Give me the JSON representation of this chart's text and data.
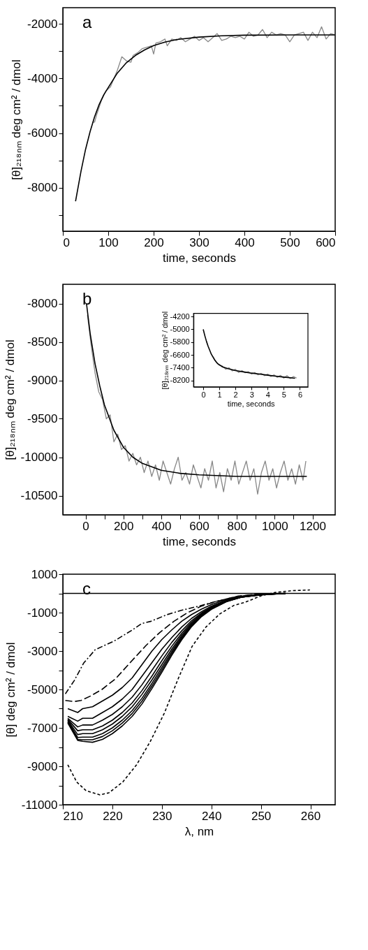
{
  "chart_data": [
    {
      "type": "line",
      "xlabel": "time, seconds",
      "ylabel": "[θ]₂₁₈ₙₘ deg cm² / dmol",
      "annotations": [
        "a"
      ],
      "xlim": [
        0,
        600
      ],
      "ylim": [
        -9600,
        -1400
      ],
      "xticks": [
        0,
        100,
        200,
        300,
        400,
        500,
        600
      ],
      "yticks": [
        -2000,
        {
          "value": -3000,
          "label": null
        },
        -4000,
        {
          "value": -5000,
          "label": null
        },
        -6000,
        {
          "value": -7000,
          "label": null
        },
        -8000,
        {
          "value": -9000,
          "label": null
        }
      ],
      "grid": false,
      "series": [
        {
          "color": "#888888",
          "line_style": "solid",
          "x": [
            65,
            70,
            75,
            85,
            95,
            105,
            110,
            120,
            130,
            140,
            150,
            155,
            165,
            175,
            185,
            195,
            200,
            205,
            215,
            225,
            230,
            240,
            250,
            260,
            270,
            280,
            290,
            300,
            310,
            320,
            330,
            340,
            350,
            360,
            370,
            380,
            390,
            400,
            410,
            420,
            430,
            440,
            450,
            460,
            470,
            480,
            490,
            500,
            510,
            520,
            530,
            540,
            550,
            560,
            570,
            580,
            590,
            600
          ],
          "values": [
            -5600,
            -5600,
            -5300,
            -4800,
            -4450,
            -4300,
            -4100,
            -3700,
            -3200,
            -3350,
            -3400,
            -3150,
            -3050,
            -2900,
            -2850,
            -2800,
            -3100,
            -2700,
            -2650,
            -2550,
            -2800,
            -2550,
            -2600,
            -2500,
            -2650,
            -2550,
            -2450,
            -2600,
            -2500,
            -2650,
            -2500,
            -2350,
            -2600,
            -2550,
            -2450,
            -2500,
            -2450,
            -2550,
            -2300,
            -2450,
            -2400,
            -2200,
            -2500,
            -2300,
            -2400,
            -2350,
            -2400,
            -2650,
            -2400,
            -2350,
            -2300,
            -2600,
            -2300,
            -2500,
            -2100,
            -2550,
            -2350,
            -2400
          ]
        },
        {
          "color": "#000000",
          "line_style": "solid",
          "x": [
            28,
            40,
            50,
            60,
            70,
            80,
            90,
            100,
            120,
            140,
            160,
            180,
            200,
            225,
            250,
            300,
            350,
            400,
            500,
            600
          ],
          "values": [
            -8500,
            -7400,
            -6600,
            -5950,
            -5400,
            -4950,
            -4600,
            -4330,
            -3800,
            -3420,
            -3150,
            -2950,
            -2790,
            -2660,
            -2570,
            -2480,
            -2430,
            -2410,
            -2400,
            -2400
          ]
        }
      ]
    },
    {
      "type": "line",
      "xlabel": "time, seconds",
      "ylabel": "[θ]₂₁₈ₙₘ deg cm² / dmol",
      "annotations": [
        "b"
      ],
      "xlim": [
        -120,
        1320
      ],
      "ylim": [
        -10750,
        -7750
      ],
      "xticks": [
        0,
        {
          "value": 100,
          "label": null
        },
        200,
        {
          "value": 300,
          "label": null
        },
        400,
        {
          "value": 500,
          "label": null
        },
        600,
        {
          "value": 700,
          "label": null
        },
        800,
        {
          "value": 900,
          "label": null
        },
        1000,
        {
          "value": 1100,
          "label": null
        },
        1200
      ],
      "yticks": [
        -8000,
        -8500,
        -9000,
        -9500,
        -10000,
        -10500
      ],
      "grid": false,
      "series": [
        {
          "color": "#888888",
          "line_style": "solid",
          "x": [
            10,
            30,
            50,
            70,
            90,
            110,
            130,
            150,
            170,
            190,
            210,
            230,
            250,
            270,
            290,
            310,
            330,
            350,
            370,
            390,
            410,
            430,
            450,
            470,
            490,
            510,
            530,
            550,
            570,
            590,
            610,
            630,
            650,
            670,
            690,
            710,
            730,
            750,
            770,
            790,
            810,
            830,
            850,
            870,
            890,
            910,
            930,
            950,
            970,
            990,
            1010,
            1030,
            1050,
            1070,
            1090,
            1110,
            1130,
            1150,
            1165
          ],
          "values": [
            -8150,
            -8550,
            -8900,
            -9150,
            -9250,
            -9500,
            -9450,
            -9800,
            -9700,
            -9900,
            -9850,
            -10050,
            -9950,
            -10100,
            -10000,
            -10200,
            -10050,
            -10250,
            -10100,
            -10300,
            -10050,
            -10200,
            -10350,
            -10150,
            -10000,
            -10300,
            -10200,
            -10350,
            -10100,
            -10250,
            -10400,
            -10150,
            -10300,
            -10050,
            -10400,
            -10200,
            -10450,
            -10150,
            -10300,
            -10050,
            -10350,
            -10200,
            -10050,
            -10300,
            -10150,
            -10480,
            -10200,
            -10050,
            -10300,
            -10150,
            -10400,
            -10200,
            -10050,
            -10300,
            -10150,
            -10350,
            -10100,
            -10300,
            -10050
          ]
        },
        {
          "color": "#000000",
          "line_style": "solid",
          "x": [
            5,
            25,
            50,
            75,
            100,
            150,
            200,
            250,
            300,
            400,
            500,
            600,
            800,
            1000,
            1170
          ],
          "values": [
            -8000,
            -8400,
            -8780,
            -9070,
            -9320,
            -9650,
            -9870,
            -10000,
            -10080,
            -10170,
            -10210,
            -10230,
            -10250,
            -10250,
            -10250
          ]
        }
      ]
    },
    {
      "type": "line",
      "xlabel": "time, seconds",
      "ylabel": "[θ]₂₁₈ₙₘ deg cm² / dmol",
      "xlim": [
        -0.6,
        6.5
      ],
      "ylim": [
        -8600,
        -4000
      ],
      "xticks": [
        0,
        1,
        2,
        3,
        4,
        5,
        6
      ],
      "yticks": [
        -4200,
        -5000,
        -5800,
        -6600,
        -7400,
        -8200
      ],
      "grid": false,
      "series": [
        {
          "color": "#888888",
          "line_style": "solid",
          "x": [
            0.6,
            0.8,
            1.0,
            1.2,
            1.4,
            1.6,
            1.8,
            2.0,
            2.2,
            2.4,
            2.6,
            2.8,
            3.0,
            3.2,
            3.4,
            3.6,
            3.8,
            4.0,
            4.2,
            4.4,
            4.6,
            4.8,
            5.0,
            5.2,
            5.4,
            5.6,
            5.8
          ],
          "values": [
            -6700,
            -7050,
            -7250,
            -7300,
            -7500,
            -7400,
            -7600,
            -7500,
            -7700,
            -7580,
            -7720,
            -7650,
            -7800,
            -7700,
            -7850,
            -7750,
            -7900,
            -7800,
            -7950,
            -7850,
            -8000,
            -7880,
            -8050,
            -7900,
            -8080,
            -7950,
            -8050
          ]
        },
        {
          "color": "#000000",
          "line_style": "solid",
          "x": [
            0,
            0.1,
            0.2,
            0.3,
            0.4,
            0.5,
            0.7,
            0.9,
            1.2,
            1.5,
            2,
            2.5,
            3,
            3.5,
            4,
            4.5,
            5,
            5.5,
            5.7
          ],
          "values": [
            -5000,
            -5400,
            -5750,
            -6050,
            -6300,
            -6550,
            -6900,
            -7150,
            -7350,
            -7450,
            -7580,
            -7660,
            -7740,
            -7800,
            -7870,
            -7930,
            -7990,
            -8040,
            -8060
          ]
        }
      ]
    },
    {
      "type": "line",
      "xlabel": "λ, nm",
      "ylabel": "[θ] deg cm² / dmol",
      "annotations": [
        "c"
      ],
      "xlim": [
        210,
        265
      ],
      "ylim": [
        -11000,
        1000
      ],
      "xticks": [
        210,
        220,
        230,
        240,
        250,
        260
      ],
      "yticks": [
        1000,
        {
          "value": 0,
          "label": null
        },
        -1000,
        {
          "value": -2000,
          "label": null
        },
        -3000,
        {
          "value": -4000,
          "label": null
        },
        -5000,
        {
          "value": -6000,
          "label": null
        },
        -7000,
        {
          "value": -8000,
          "label": null
        },
        -9000,
        {
          "value": -10000,
          "label": null
        },
        -11000
      ],
      "grid": false,
      "ref_lines": [
        {
          "axis": "y",
          "value": 0,
          "color": "#000000",
          "line_style": "solid"
        }
      ],
      "x": [
        211,
        213,
        214,
        216,
        218,
        220,
        222,
        224,
        226,
        228,
        230,
        232,
        234,
        236,
        238,
        240,
        243,
        246,
        250,
        255
      ],
      "series": [
        {
          "color": "#000000",
          "line_style": "dashdot",
          "x": [
            210.5,
            212.3,
            214.2,
            216.5,
            218.4,
            220.3,
            224,
            225.9,
            227.7,
            231,
            233.8,
            237.5,
            240.8,
            244.5,
            247.8,
            250,
            254.8
          ],
          "values": [
            -5230,
            -4540,
            -3630,
            -2940,
            -2710,
            -2490,
            -1910,
            -1570,
            -1460,
            -1110,
            -890,
            -660,
            -430,
            -200,
            -90,
            -30,
            0
          ]
        },
        {
          "color": "#000000",
          "line_style": "dashed",
          "x": [
            210.5,
            212.3,
            213.7,
            215.6,
            217.9,
            220.7,
            223.5,
            226.8,
            229.6,
            232.4,
            235.2,
            238,
            240.8,
            245.4,
            250.1,
            254.8
          ],
          "values": [
            -5570,
            -5630,
            -5570,
            -5340,
            -5000,
            -4430,
            -3630,
            -2710,
            -2030,
            -1460,
            -1000,
            -660,
            -430,
            -140,
            -30,
            0
          ]
        },
        {
          "color": "#000000",
          "line_style": "solid",
          "values": [
            -6000,
            -6200,
            -6000,
            -5900,
            -5600,
            -5300,
            -4900,
            -4400,
            -3700,
            -3000,
            -2400,
            -1900,
            -1450,
            -1100,
            -820,
            -580,
            -320,
            -150,
            -50,
            0
          ]
        },
        {
          "color": "#000000",
          "line_style": "solid",
          "values": [
            -6400,
            -6650,
            -6500,
            -6500,
            -6200,
            -5900,
            -5500,
            -5000,
            -4300,
            -3600,
            -2900,
            -2300,
            -1750,
            -1300,
            -950,
            -660,
            -360,
            -170,
            -50,
            0
          ]
        },
        {
          "color": "#000000",
          "line_style": "solid",
          "values": [
            -6500,
            -6950,
            -6850,
            -6850,
            -6600,
            -6300,
            -5900,
            -5400,
            -4750,
            -4000,
            -3250,
            -2550,
            -1950,
            -1420,
            -1020,
            -710,
            -380,
            -180,
            -60,
            0
          ]
        },
        {
          "color": "#000000",
          "line_style": "solid",
          "values": [
            -6550,
            -7150,
            -7100,
            -7100,
            -6900,
            -6600,
            -6200,
            -5700,
            -5050,
            -4300,
            -3500,
            -2750,
            -2080,
            -1500,
            -1070,
            -740,
            -400,
            -190,
            -60,
            0
          ]
        },
        {
          "color": "#000000",
          "line_style": "solid",
          "values": [
            -6600,
            -7350,
            -7300,
            -7300,
            -7100,
            -6800,
            -6400,
            -5900,
            -5250,
            -4500,
            -3700,
            -2900,
            -2180,
            -1570,
            -1110,
            -770,
            -410,
            -200,
            -70,
            0
          ]
        },
        {
          "color": "#000000",
          "line_style": "solid",
          "values": [
            -6650,
            -7500,
            -7480,
            -7480,
            -7300,
            -7000,
            -6600,
            -6100,
            -5450,
            -4680,
            -3850,
            -3020,
            -2270,
            -1630,
            -1150,
            -790,
            -420,
            -200,
            -70,
            0
          ]
        },
        {
          "color": "#000000",
          "line_style": "solid",
          "values": [
            -6700,
            -7600,
            -7620,
            -7620,
            -7450,
            -7150,
            -6750,
            -6250,
            -5600,
            -4820,
            -3980,
            -3120,
            -2340,
            -1680,
            -1180,
            -810,
            -430,
            -200,
            -70,
            0
          ]
        },
        {
          "color": "#000000",
          "line_style": "solid",
          "values": [
            -6750,
            -7650,
            -7700,
            -7750,
            -7600,
            -7300,
            -6900,
            -6400,
            -5750,
            -4950,
            -4100,
            -3220,
            -2420,
            -1730,
            -1210,
            -830,
            -440,
            -200,
            -80,
            0
          ]
        },
        {
          "color": "#000000",
          "line_style": "dotted",
          "x": [
            211,
            212.8,
            214.7,
            217.5,
            219.3,
            222.1,
            224.9,
            227.7,
            230.5,
            233.3,
            236.1,
            238.9,
            241.7,
            244.5,
            246.8,
            250.1,
            252.9,
            256.2,
            259.9
          ],
          "values": [
            -8920,
            -9820,
            -10270,
            -10490,
            -10380,
            -9820,
            -8920,
            -7690,
            -6230,
            -4440,
            -2760,
            -1750,
            -1070,
            -630,
            -460,
            -120,
            50,
            140,
            180
          ]
        }
      ]
    }
  ]
}
